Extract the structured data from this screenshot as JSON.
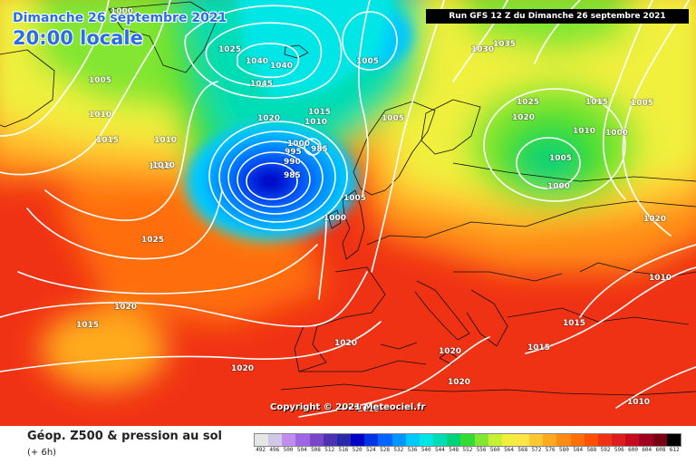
{
  "header": {
    "date_title": "Dimanche 26 septembre 2021",
    "time_title": "20:00 locale",
    "run_banner": "Run GFS 12 Z du Dimanche 26 septembre 2021"
  },
  "map": {
    "copyright": "Copyright © 2021 Meteociel.fr",
    "isobar_labels": [
      {
        "text": "1000"
      },
      {
        "text": "1005"
      },
      {
        "text": "1010"
      },
      {
        "text": "1015"
      },
      {
        "text": "1010"
      },
      {
        "text": "1015"
      },
      {
        "text": "1010"
      },
      {
        "text": "1025"
      },
      {
        "text": "1025"
      },
      {
        "text": "1020"
      },
      {
        "text": "1015"
      },
      {
        "text": "1020"
      },
      {
        "text": "1040"
      },
      {
        "text": "1040"
      },
      {
        "text": "1045"
      },
      {
        "text": "1005"
      },
      {
        "text": "1020"
      },
      {
        "text": "1015"
      },
      {
        "text": "1010"
      },
      {
        "text": "1000"
      },
      {
        "text": "995"
      },
      {
        "text": "985"
      },
      {
        "text": "990"
      },
      {
        "text": "985"
      },
      {
        "text": "1005"
      },
      {
        "text": "1005"
      },
      {
        "text": "1000"
      },
      {
        "text": "1030"
      },
      {
        "text": "1035"
      },
      {
        "text": "1025"
      },
      {
        "text": "1015"
      },
      {
        "text": "1005"
      },
      {
        "text": "1020"
      },
      {
        "text": "1010"
      },
      {
        "text": "1000"
      },
      {
        "text": "1005"
      },
      {
        "text": "1000"
      },
      {
        "text": "1020"
      },
      {
        "text": "1010"
      },
      {
        "text": "1020"
      },
      {
        "text": "1020"
      },
      {
        "text": "1020"
      },
      {
        "text": "1015"
      },
      {
        "text": "1015"
      },
      {
        "text": "1015"
      },
      {
        "text": "1010"
      }
    ]
  },
  "footer": {
    "title": "Géop. Z500 & pression au sol",
    "subtitle": "(+ 6h)",
    "scale": [
      {
        "label": "492",
        "color": "#e6e6e6"
      },
      {
        "label": "496",
        "color": "#d0c8e6"
      },
      {
        "label": "500",
        "color": "#c08cf0"
      },
      {
        "label": "504",
        "color": "#a064e6"
      },
      {
        "label": "508",
        "color": "#7846c8"
      },
      {
        "label": "512",
        "color": "#4b32b4"
      },
      {
        "label": "516",
        "color": "#2828aa"
      },
      {
        "label": "520",
        "color": "#0000c8"
      },
      {
        "label": "524",
        "color": "#0032e6"
      },
      {
        "label": "528",
        "color": "#0064ff"
      },
      {
        "label": "532",
        "color": "#0096ff"
      },
      {
        "label": "536",
        "color": "#00c8ff"
      },
      {
        "label": "540",
        "color": "#00e6e6"
      },
      {
        "label": "544",
        "color": "#00dcb4"
      },
      {
        "label": "548",
        "color": "#00d278"
      },
      {
        "label": "552",
        "color": "#32dc32"
      },
      {
        "label": "556",
        "color": "#82e632"
      },
      {
        "label": "560",
        "color": "#c8f032"
      },
      {
        "label": "564",
        "color": "#f0f03c"
      },
      {
        "label": "568",
        "color": "#ffe646"
      },
      {
        "label": "572",
        "color": "#ffc832"
      },
      {
        "label": "576",
        "color": "#ffaa1e"
      },
      {
        "label": "580",
        "color": "#ff8c14"
      },
      {
        "label": "584",
        "color": "#ff6e0a"
      },
      {
        "label": "588",
        "color": "#ff5000"
      },
      {
        "label": "592",
        "color": "#f03214"
      },
      {
        "label": "596",
        "color": "#dc1e1e"
      },
      {
        "label": "600",
        "color": "#c80a1e"
      },
      {
        "label": "604",
        "color": "#a0001e"
      },
      {
        "label": "608",
        "color": "#780014"
      },
      {
        "label": "612",
        "color": "#000000"
      }
    ]
  }
}
